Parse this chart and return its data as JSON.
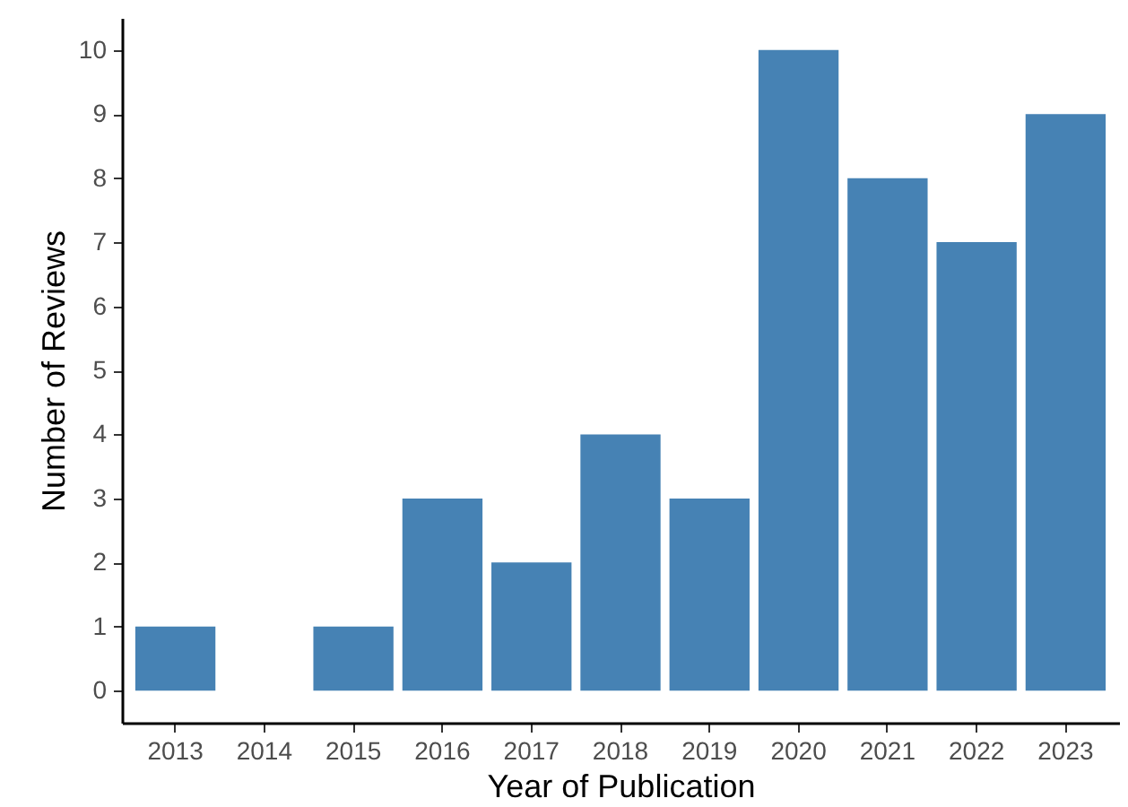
{
  "chart_data": {
    "type": "bar",
    "xlabel": "Year of Publication",
    "ylabel": "Number of Reviews",
    "categories": [
      "2013",
      "2014",
      "2015",
      "2016",
      "2017",
      "2018",
      "2019",
      "2020",
      "2021",
      "2022",
      "2023"
    ],
    "values": [
      1,
      0,
      1,
      3,
      2,
      4,
      3,
      10,
      8,
      7,
      9
    ],
    "color": "#4682b4",
    "ylim": [
      -0.5,
      10.5
    ],
    "yticks": [
      0,
      1,
      2,
      3,
      4,
      5,
      6,
      7,
      8,
      9,
      10
    ],
    "grid": false
  }
}
